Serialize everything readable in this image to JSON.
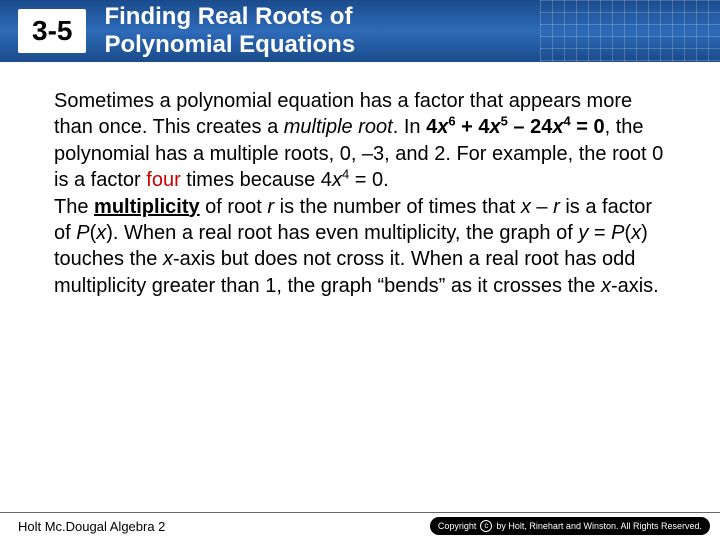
{
  "header": {
    "lesson_number": "3-5",
    "title_line1": "Finding Real Roots of",
    "title_line2": "Polynomial Equations",
    "bg_gradient_top": "#1a4b8c",
    "bg_gradient_mid": "#2e6bb8"
  },
  "body": {
    "p1_a": "Sometimes a polynomial equation has a factor that appears more than once. This creates a ",
    "p1_b": "multiple root",
    "p1_c": ". In ",
    "eq1_a": "4",
    "eq1_var1": "x",
    "eq1_sup1": "6",
    "eq1_b": " + 4",
    "eq1_var2": "x",
    "eq1_sup2": "5",
    "eq1_c": " – 24",
    "eq1_var3": "x",
    "eq1_sup3": "4",
    "eq1_d": " = 0",
    "p1_d": ", the polynomial has a multiple roots, 0, –3, and 2. For example, the root 0 is a factor ",
    "p1_four": "four",
    "p1_e": " times because 4",
    "eq2_var": "x",
    "eq2_sup": "4",
    "p1_f": " = 0.",
    "p2_a": "The ",
    "p2_mult": "multiplicity",
    "p2_b": " of root ",
    "p2_r": "r",
    "p2_c": " is the number of times that ",
    "p2_x": "x",
    "p2_d": " – ",
    "p2_r2": "r",
    "p2_e": " is a factor of ",
    "p2_P": "P",
    "p2_f": "(",
    "p2_x2": "x",
    "p2_g": "). When a real root has even multiplicity, the graph of ",
    "p2_y": "y",
    "p2_h": " = ",
    "p2_P2": "P",
    "p2_i": "(",
    "p2_x3": "x",
    "p2_j": ") touches the ",
    "p2_xaxis": "x",
    "p2_k": "-axis but does not cross it. When a real root has odd multiplicity greater than 1, the graph “bends” as it crosses the ",
    "p2_xaxis2": "x",
    "p2_l": "-axis."
  },
  "footer": {
    "left": "Holt Mc.Dougal Algebra 2",
    "copyright": "by Holt, Rinehart and Winston. All Rights Reserved.",
    "copyright_label": "Copyright"
  }
}
